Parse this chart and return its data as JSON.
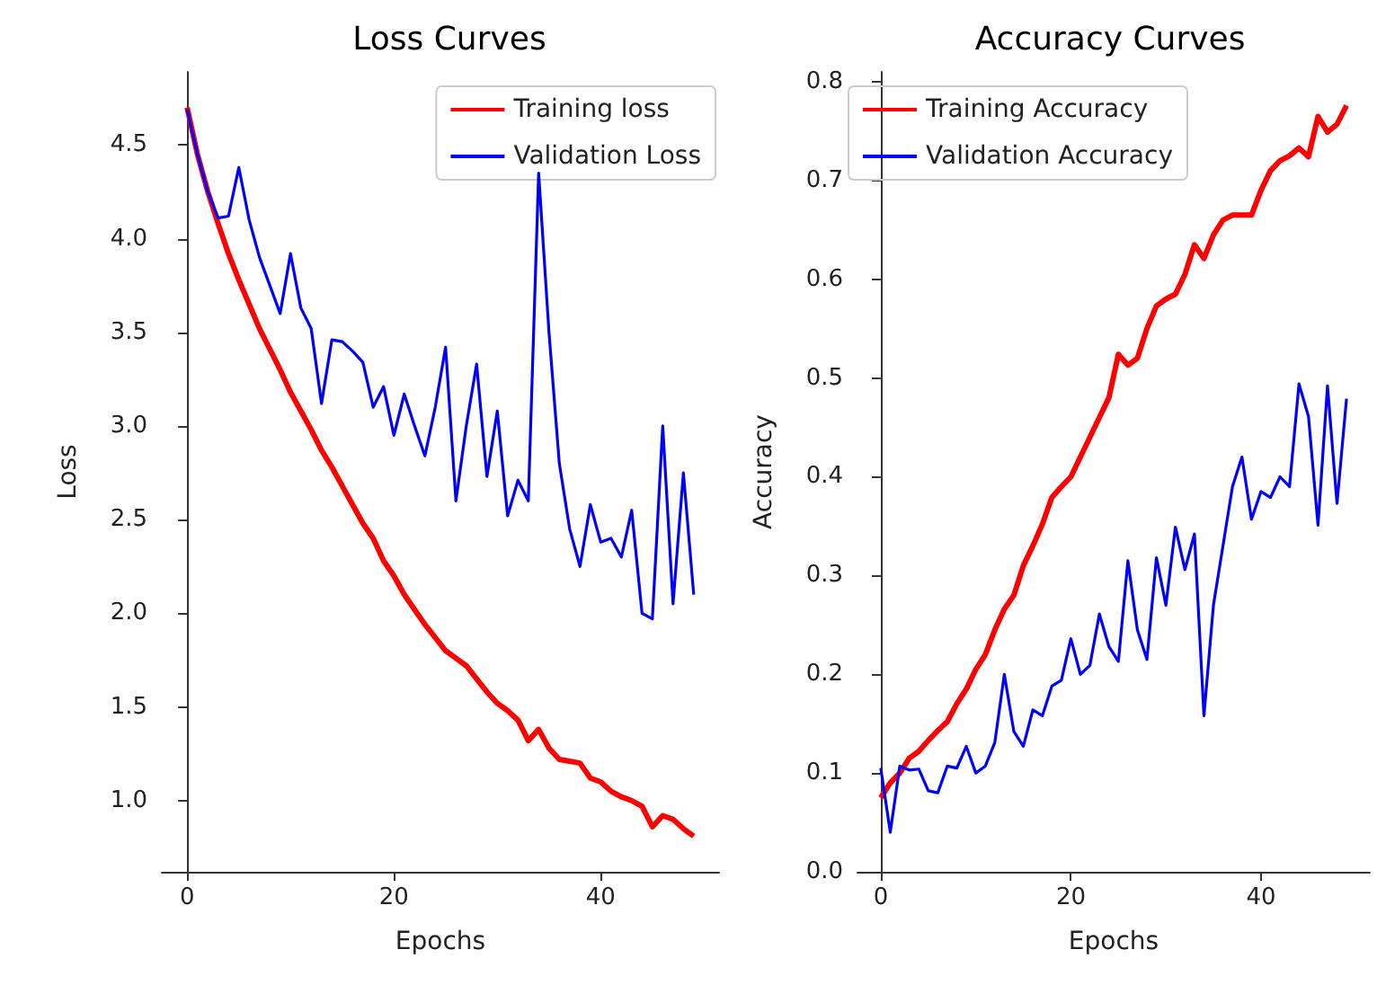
{
  "chart_data": [
    {
      "type": "line",
      "title": "Loss Curves",
      "xlabel": "Epochs",
      "ylabel": "Loss",
      "legend": "top right",
      "grid": false,
      "x": [
        0,
        1,
        2,
        3,
        4,
        5,
        6,
        7,
        8,
        9,
        10,
        11,
        12,
        13,
        14,
        15,
        16,
        17,
        18,
        19,
        20,
        21,
        22,
        23,
        24,
        25,
        26,
        27,
        28,
        29,
        30,
        31,
        32,
        33,
        34,
        35,
        36,
        37,
        38,
        39,
        40,
        41,
        42,
        43,
        44,
        45,
        46,
        47,
        48,
        49
      ],
      "xlim": [
        -2.45,
        51.45
      ],
      "xticks": [
        0,
        20,
        40
      ],
      "ylim": [
        0.62,
        4.89
      ],
      "yticks": [
        {
          "value": 1,
          "label": "1.0"
        },
        1.5,
        {
          "value": 2,
          "label": "2.0"
        },
        2.5,
        {
          "value": 3,
          "label": "3.0"
        },
        3.5,
        {
          "value": 4,
          "label": "4.0"
        },
        4.5
      ],
      "series": [
        {
          "name": "Training loss",
          "color": "#ff0000",
          "values": [
            4.7,
            4.45,
            4.25,
            4.08,
            3.92,
            3.78,
            3.65,
            3.52,
            3.41,
            3.3,
            3.18,
            3.08,
            2.98,
            2.87,
            2.78,
            2.68,
            2.58,
            2.48,
            2.4,
            2.28,
            2.2,
            2.1,
            2.02,
            1.94,
            1.87,
            1.8,
            1.76,
            1.72,
            1.65,
            1.58,
            1.52,
            1.48,
            1.43,
            1.32,
            1.38,
            1.28,
            1.22,
            1.21,
            1.2,
            1.12,
            1.1,
            1.05,
            1.02,
            1.0,
            0.97,
            0.86,
            0.92,
            0.9,
            0.85,
            0.81
          ]
        },
        {
          "name": "Validation Loss",
          "color": "#0000ff",
          "values": [
            4.69,
            4.45,
            4.25,
            4.11,
            4.12,
            4.38,
            4.1,
            3.9,
            3.75,
            3.6,
            3.92,
            3.63,
            3.52,
            3.12,
            3.46,
            3.45,
            3.4,
            3.34,
            3.1,
            3.21,
            2.95,
            3.17,
            3.0,
            2.84,
            3.1,
            3.42,
            2.6,
            3.0,
            3.33,
            2.73,
            3.08,
            2.52,
            2.71,
            2.6,
            4.35,
            3.5,
            2.8,
            2.45,
            2.25,
            2.58,
            2.38,
            2.4,
            2.3,
            2.55,
            2.0,
            1.97,
            3.0,
            2.05,
            2.75,
            2.1
          ]
        }
      ]
    },
    {
      "type": "line",
      "title": "Accuracy Curves",
      "xlabel": "Epochs",
      "ylabel": "Accuracy",
      "legend": "top left",
      "grid": false,
      "x": [
        0,
        1,
        2,
        3,
        4,
        5,
        6,
        7,
        8,
        9,
        10,
        11,
        12,
        13,
        14,
        15,
        16,
        17,
        18,
        19,
        20,
        21,
        22,
        23,
        24,
        25,
        26,
        27,
        28,
        29,
        30,
        31,
        32,
        33,
        34,
        35,
        36,
        37,
        38,
        39,
        40,
        41,
        42,
        43,
        44,
        45,
        46,
        47,
        48,
        49
      ],
      "xlim": [
        -2.45,
        51.45
      ],
      "xticks": [
        0,
        20,
        40
      ],
      "ylim": [
        0,
        0.81
      ],
      "yticks": [
        {
          "value": 0,
          "label": "0.0"
        },
        0.1,
        0.2,
        0.3,
        0.4,
        0.5,
        0.6,
        0.7,
        0.8
      ],
      "series": [
        {
          "name": "Training Accuracy",
          "color": "#ff0000",
          "values": [
            0.075,
            0.09,
            0.1,
            0.115,
            0.122,
            0.133,
            0.143,
            0.152,
            0.17,
            0.185,
            0.205,
            0.22,
            0.245,
            0.266,
            0.28,
            0.31,
            0.33,
            0.352,
            0.379,
            0.39,
            0.4,
            0.42,
            0.44,
            0.46,
            0.48,
            0.524,
            0.513,
            0.52,
            0.55,
            0.573,
            0.58,
            0.585,
            0.605,
            0.635,
            0.621,
            0.645,
            0.66,
            0.665,
            0.665,
            0.665,
            0.69,
            0.71,
            0.72,
            0.725,
            0.733,
            0.724,
            0.765,
            0.749,
            0.757,
            0.776
          ]
        },
        {
          "name": "Validation Accuracy",
          "color": "#0000ff",
          "values": [
            0.105,
            0.04,
            0.107,
            0.103,
            0.104,
            0.082,
            0.08,
            0.107,
            0.105,
            0.127,
            0.1,
            0.107,
            0.131,
            0.2,
            0.142,
            0.127,
            0.164,
            0.158,
            0.188,
            0.194,
            0.236,
            0.2,
            0.209,
            0.261,
            0.228,
            0.213,
            0.315,
            0.245,
            0.215,
            0.318,
            0.27,
            0.349,
            0.306,
            0.342,
            0.158,
            0.27,
            0.33,
            0.39,
            0.42,
            0.357,
            0.385,
            0.379,
            0.4,
            0.39,
            0.494,
            0.461,
            0.351,
            0.492,
            0.373,
            0.479
          ]
        }
      ]
    }
  ]
}
